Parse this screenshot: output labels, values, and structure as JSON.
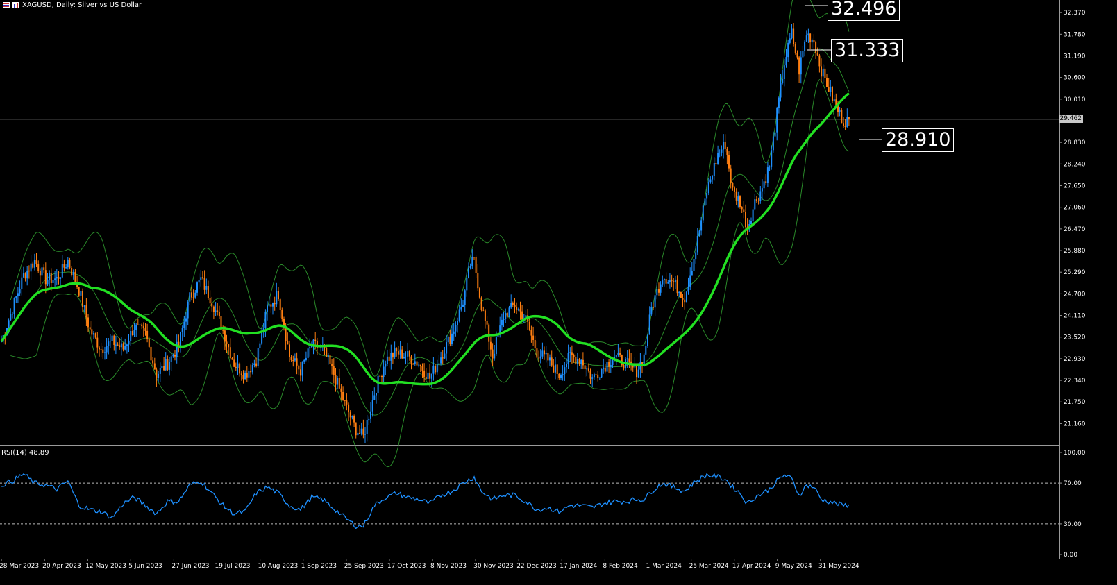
{
  "title": {
    "symbol_text": "XAGUSD, Daily:  Silver vs US Dollar",
    "icon1": "list-icon",
    "icon2": "chart-icon"
  },
  "colors": {
    "up": "#1e90ff",
    "down": "#ff7f11",
    "ma": "#22e022",
    "bands": "#2a8a2a",
    "rsi": "#1e90ff",
    "grid_text": "#ffffff"
  },
  "annotations": {
    "high_label": "32.496",
    "mid_label": "31.333",
    "ma_label": "28.910",
    "current_price": "29.462"
  },
  "rsi_title": "RSI(14) 48.89",
  "chart_data": {
    "type": "candlestick",
    "title": "XAGUSD, Daily:  Silver vs US Dollar",
    "price_axis": {
      "range": [
        20.6,
        32.6
      ],
      "ticks": [
        "32.370",
        "31.780",
        "31.190",
        "30.600",
        "30.010",
        "29.462",
        "28.830",
        "28.240",
        "27.650",
        "27.060",
        "26.470",
        "25.880",
        "25.290",
        "24.700",
        "24.110",
        "23.520",
        "22.930",
        "22.340",
        "21.750",
        "21.160"
      ]
    },
    "rsi_axis": {
      "range": [
        0,
        100
      ],
      "ticks": [
        "100.00",
        "70.00",
        "30.00",
        "0.00"
      ],
      "levels": [
        70,
        30
      ]
    },
    "x_ticks": [
      "28 Mar 2023",
      "20 Apr 2023",
      "12 May 2023",
      "5 Jun 2023",
      "27 Jun 2023",
      "19 Jul 2023",
      "10 Aug 2023",
      "1 Sep 2023",
      "25 Sep 2023",
      "17 Oct 2023",
      "8 Nov 2023",
      "30 Nov 2023",
      "22 Dec 2023",
      "17 Jan 2024",
      "8 Feb 2024",
      "1 Mar 2024",
      "25 Mar 2024",
      "17 Apr 2024",
      "9 May 2024",
      "31 May 2024"
    ],
    "close_anchors": [
      [
        0,
        23.4
      ],
      [
        6,
        24.3
      ],
      [
        12,
        25.2
      ],
      [
        18,
        25.6
      ],
      [
        24,
        25.1
      ],
      [
        30,
        25.1
      ],
      [
        36,
        25.6
      ],
      [
        42,
        24.8
      ],
      [
        48,
        23.7
      ],
      [
        54,
        23.2
      ],
      [
        60,
        23.4
      ],
      [
        66,
        23.2
      ],
      [
        72,
        23.8
      ],
      [
        78,
        23.6
      ],
      [
        84,
        22.5
      ],
      [
        90,
        22.8
      ],
      [
        96,
        23.3
      ],
      [
        102,
        24.6
      ],
      [
        108,
        25.1
      ],
      [
        114,
        24.5
      ],
      [
        120,
        23.7
      ],
      [
        126,
        22.8
      ],
      [
        132,
        22.5
      ],
      [
        138,
        22.9
      ],
      [
        144,
        24.3
      ],
      [
        150,
        24.7
      ],
      [
        156,
        23.0
      ],
      [
        162,
        22.6
      ],
      [
        168,
        23.3
      ],
      [
        174,
        23.2
      ],
      [
        180,
        22.5
      ],
      [
        186,
        21.7
      ],
      [
        192,
        21.0
      ],
      [
        196,
        20.8
      ],
      [
        202,
        22.0
      ],
      [
        208,
        22.9
      ],
      [
        214,
        23.1
      ],
      [
        220,
        23.0
      ],
      [
        226,
        22.8
      ],
      [
        232,
        22.4
      ],
      [
        238,
        23.0
      ],
      [
        244,
        23.6
      ],
      [
        250,
        24.5
      ],
      [
        254,
        25.5
      ],
      [
        256,
        25.6
      ],
      [
        260,
        24.4
      ],
      [
        266,
        23.0
      ],
      [
        272,
        24.1
      ],
      [
        278,
        24.4
      ],
      [
        284,
        24.0
      ],
      [
        290,
        23.1
      ],
      [
        296,
        22.9
      ],
      [
        302,
        22.5
      ],
      [
        308,
        23.0
      ],
      [
        314,
        22.9
      ],
      [
        320,
        22.4
      ],
      [
        326,
        22.7
      ],
      [
        332,
        23.0
      ],
      [
        338,
        22.8
      ],
      [
        344,
        22.6
      ],
      [
        348,
        23.0
      ],
      [
        352,
        24.3
      ],
      [
        358,
        25.2
      ],
      [
        364,
        25.0
      ],
      [
        370,
        24.6
      ],
      [
        376,
        25.9
      ],
      [
        382,
        27.5
      ],
      [
        388,
        28.5
      ],
      [
        392,
        28.8
      ],
      [
        396,
        27.5
      ],
      [
        400,
        27.2
      ],
      [
        404,
        26.5
      ],
      [
        408,
        27.2
      ],
      [
        412,
        27.6
      ],
      [
        416,
        28.2
      ],
      [
        420,
        29.6
      ],
      [
        424,
        31.0
      ],
      [
        428,
        31.8
      ],
      [
        432,
        30.8
      ],
      [
        436,
        31.8
      ],
      [
        440,
        31.6
      ],
      [
        444,
        30.8
      ],
      [
        448,
        30.3
      ],
      [
        452,
        29.8
      ],
      [
        456,
        29.4
      ],
      [
        459,
        29.46
      ]
    ],
    "rsi_anchors": [
      [
        0,
        68
      ],
      [
        6,
        72
      ],
      [
        12,
        79
      ],
      [
        18,
        70
      ],
      [
        24,
        68
      ],
      [
        30,
        64
      ],
      [
        36,
        72
      ],
      [
        42,
        48
      ],
      [
        48,
        44
      ],
      [
        54,
        42
      ],
      [
        60,
        36
      ],
      [
        66,
        50
      ],
      [
        72,
        56
      ],
      [
        78,
        48
      ],
      [
        84,
        40
      ],
      [
        90,
        52
      ],
      [
        96,
        52
      ],
      [
        102,
        68
      ],
      [
        108,
        72
      ],
      [
        114,
        60
      ],
      [
        120,
        48
      ],
      [
        126,
        40
      ],
      [
        132,
        42
      ],
      [
        138,
        60
      ],
      [
        144,
        66
      ],
      [
        150,
        60
      ],
      [
        156,
        48
      ],
      [
        162,
        44
      ],
      [
        168,
        56
      ],
      [
        174,
        54
      ],
      [
        180,
        45
      ],
      [
        186,
        36
      ],
      [
        192,
        28
      ],
      [
        196,
        28
      ],
      [
        202,
        48
      ],
      [
        208,
        56
      ],
      [
        214,
        60
      ],
      [
        220,
        56
      ],
      [
        226,
        54
      ],
      [
        232,
        50
      ],
      [
        238,
        58
      ],
      [
        244,
        62
      ],
      [
        250,
        70
      ],
      [
        256,
        76
      ],
      [
        260,
        62
      ],
      [
        266,
        54
      ],
      [
        272,
        58
      ],
      [
        278,
        58
      ],
      [
        284,
        52
      ],
      [
        290,
        44
      ],
      [
        296,
        46
      ],
      [
        302,
        42
      ],
      [
        308,
        48
      ],
      [
        314,
        48
      ],
      [
        320,
        46
      ],
      [
        326,
        50
      ],
      [
        332,
        52
      ],
      [
        338,
        52
      ],
      [
        344,
        54
      ],
      [
        348,
        54
      ],
      [
        352,
        62
      ],
      [
        358,
        70
      ],
      [
        364,
        66
      ],
      [
        370,
        62
      ],
      [
        376,
        72
      ],
      [
        382,
        78
      ],
      [
        388,
        76
      ],
      [
        392,
        74
      ],
      [
        396,
        66
      ],
      [
        400,
        60
      ],
      [
        404,
        50
      ],
      [
        408,
        56
      ],
      [
        412,
        60
      ],
      [
        416,
        64
      ],
      [
        420,
        72
      ],
      [
        424,
        78
      ],
      [
        428,
        74
      ],
      [
        432,
        58
      ],
      [
        436,
        68
      ],
      [
        440,
        66
      ],
      [
        444,
        54
      ],
      [
        448,
        52
      ],
      [
        452,
        50
      ],
      [
        456,
        48
      ],
      [
        459,
        48.89
      ]
    ]
  }
}
